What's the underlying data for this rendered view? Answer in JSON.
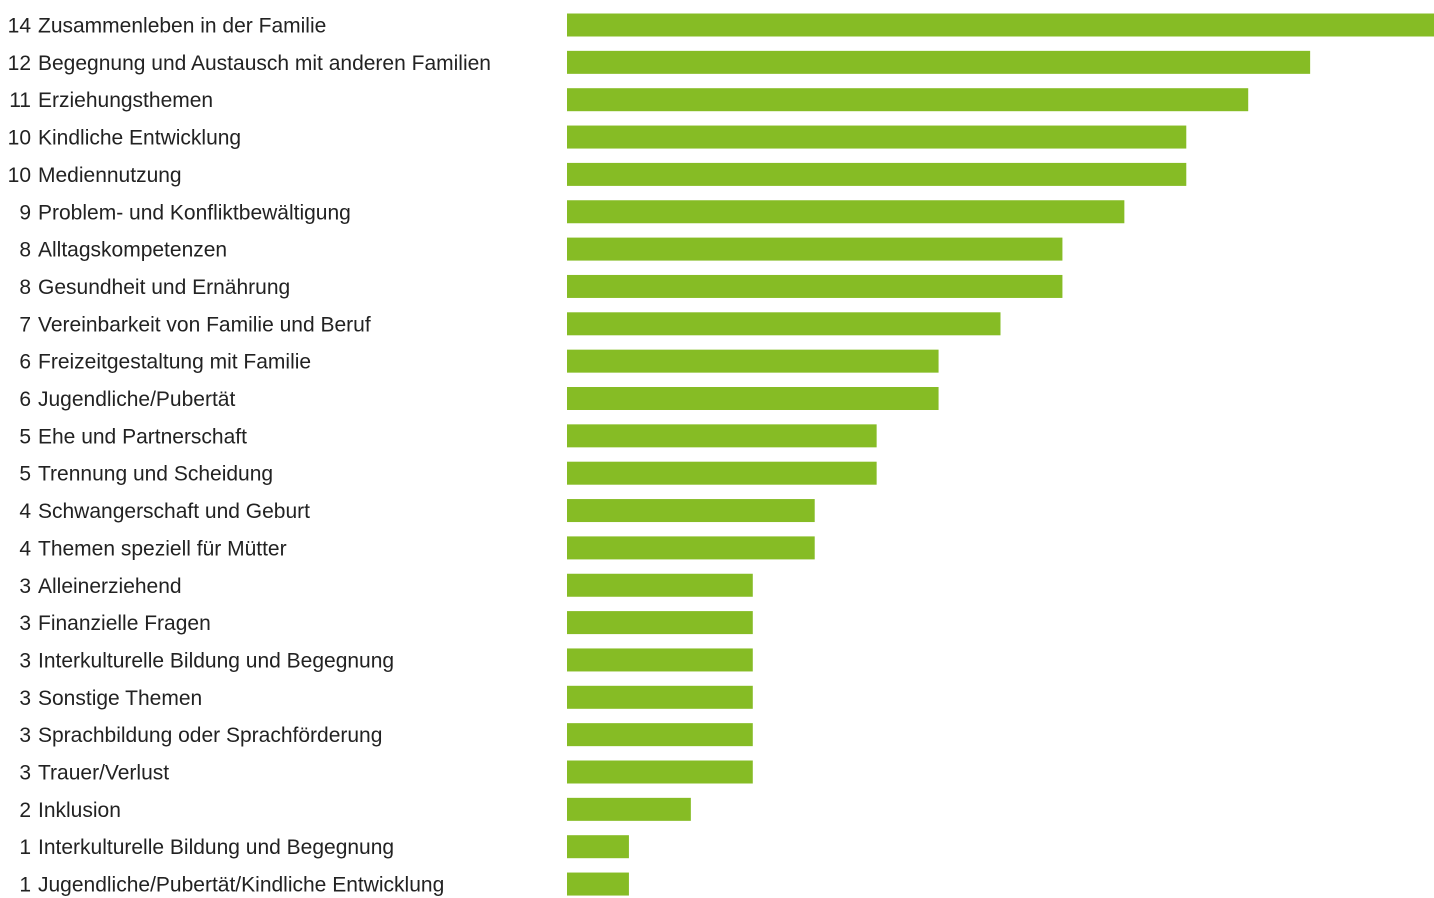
{
  "chart_data": {
    "type": "bar",
    "orientation": "horizontal",
    "color": "#86bc25",
    "categories": [
      "Zusammenleben in der Familie",
      "Begegnung und Austausch mit anderen Familien",
      "Erziehungsthemen",
      "Kindliche Entwicklung",
      "Mediennutzung",
      "Problem- und Konfliktbewältigung",
      "Alltagskompetenzen",
      "Gesundheit und Ernährung",
      "Vereinbarkeit von Familie und Beruf",
      "Freizeitgestaltung mit Familie",
      "Jugendliche/Pubertät",
      "Ehe und Partnerschaft",
      "Trennung und Scheidung",
      "Schwangerschaft und Geburt",
      "Themen speziell für Mütter",
      "Alleinerziehend",
      "Finanzielle Fragen",
      "Interkulturelle Bildung und Begegnung",
      "Sonstige Themen",
      "Sprachbildung oder Sprachförderung",
      "Trauer/Verlust",
      "Inklusion",
      "Interkulturelle Bildung und Begegnung",
      "Jugendliche/Pubertät/Kindliche Entwicklung"
    ],
    "values": [
      14,
      12,
      11,
      10,
      10,
      9,
      8,
      8,
      7,
      6,
      6,
      5,
      5,
      4,
      4,
      3,
      3,
      3,
      3,
      3,
      3,
      2,
      1,
      1
    ]
  }
}
